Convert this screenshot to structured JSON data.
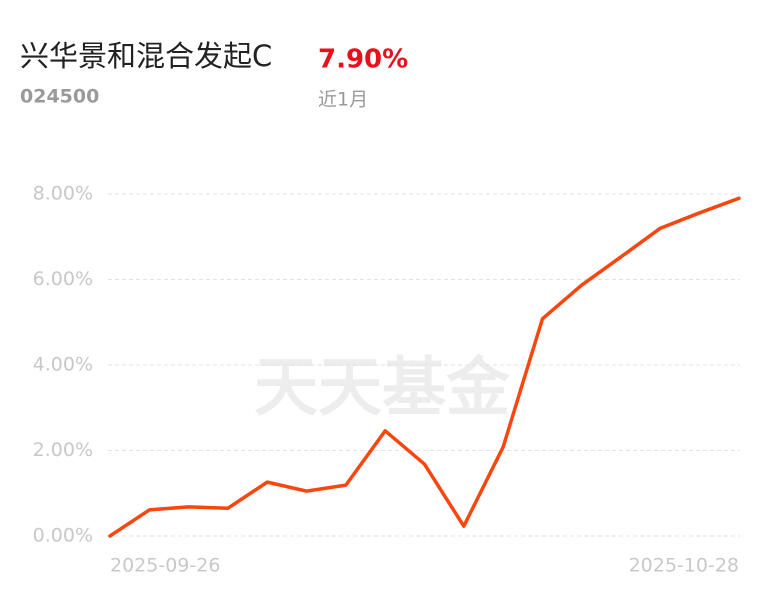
{
  "chart_data": {
    "type": "line",
    "title": "兴华景和混合发起C",
    "fund_code": "024500",
    "return_label": "7.90%",
    "period": "近1月",
    "watermark": "天天基金",
    "categories": [
      "2025-09-26",
      null,
      null,
      null,
      null,
      null,
      null,
      null,
      null,
      null,
      null,
      null,
      null,
      null,
      null,
      null,
      "2025-10-28"
    ],
    "series": [
      {
        "name": "兴华景和混合发起C",
        "color": "#f8460f",
        "values": [
          0,
          0.61,
          0.68,
          0.65,
          1.26,
          1.05,
          1.19,
          2.46,
          1.68,
          0.23,
          2.08,
          5.08,
          5.87,
          6.53,
          7.2,
          7.56,
          7.9
        ]
      }
    ],
    "ylim": [
      0,
      8
    ],
    "yticks": [
      {
        "value": 0,
        "label": "0.00%"
      },
      {
        "value": 2,
        "label": "2.00%"
      },
      {
        "value": 4,
        "label": "4.00%"
      },
      {
        "value": 6,
        "label": "6.00%"
      },
      {
        "value": 8,
        "label": "8.00%"
      }
    ],
    "grid": true
  }
}
